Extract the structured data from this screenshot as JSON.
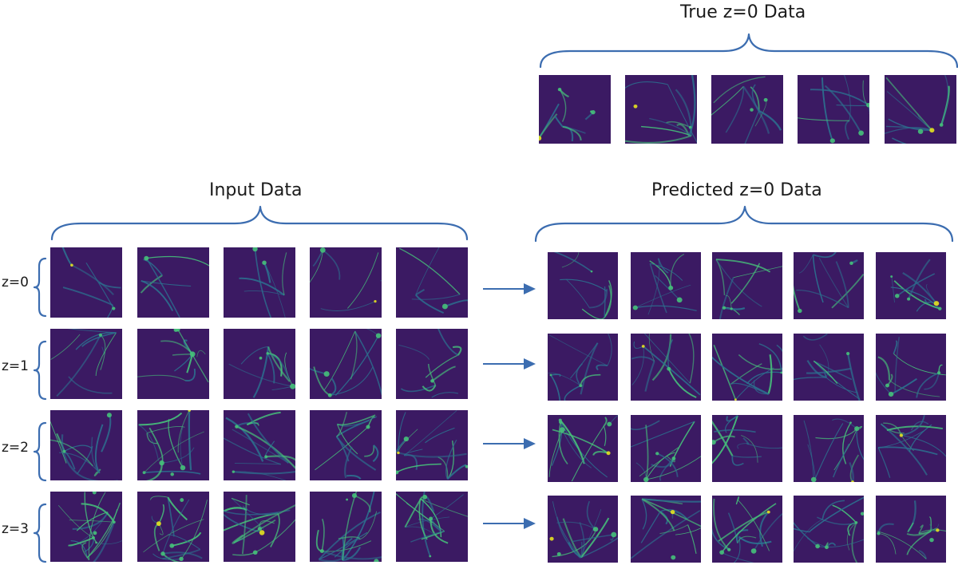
{
  "colors": {
    "brace": "#3c6db0",
    "arrow": "#3c6db0",
    "field_dark": "#3b1a63",
    "field_mid": "#2c6f8e",
    "field_bright": "#46c17a",
    "field_peak": "#e5e21f"
  },
  "true_section": {
    "title": "True z=0 Data",
    "tile_count": 5
  },
  "input_section": {
    "title": "Input Data",
    "rows": [
      {
        "label": "z=0"
      },
      {
        "label": "z=1"
      },
      {
        "label": "z=2"
      },
      {
        "label": "z=3"
      }
    ],
    "tiles_per_row": 5
  },
  "predicted_section": {
    "title": "Predicted z=0 Data",
    "rows": 4,
    "tiles_per_row": 5
  }
}
